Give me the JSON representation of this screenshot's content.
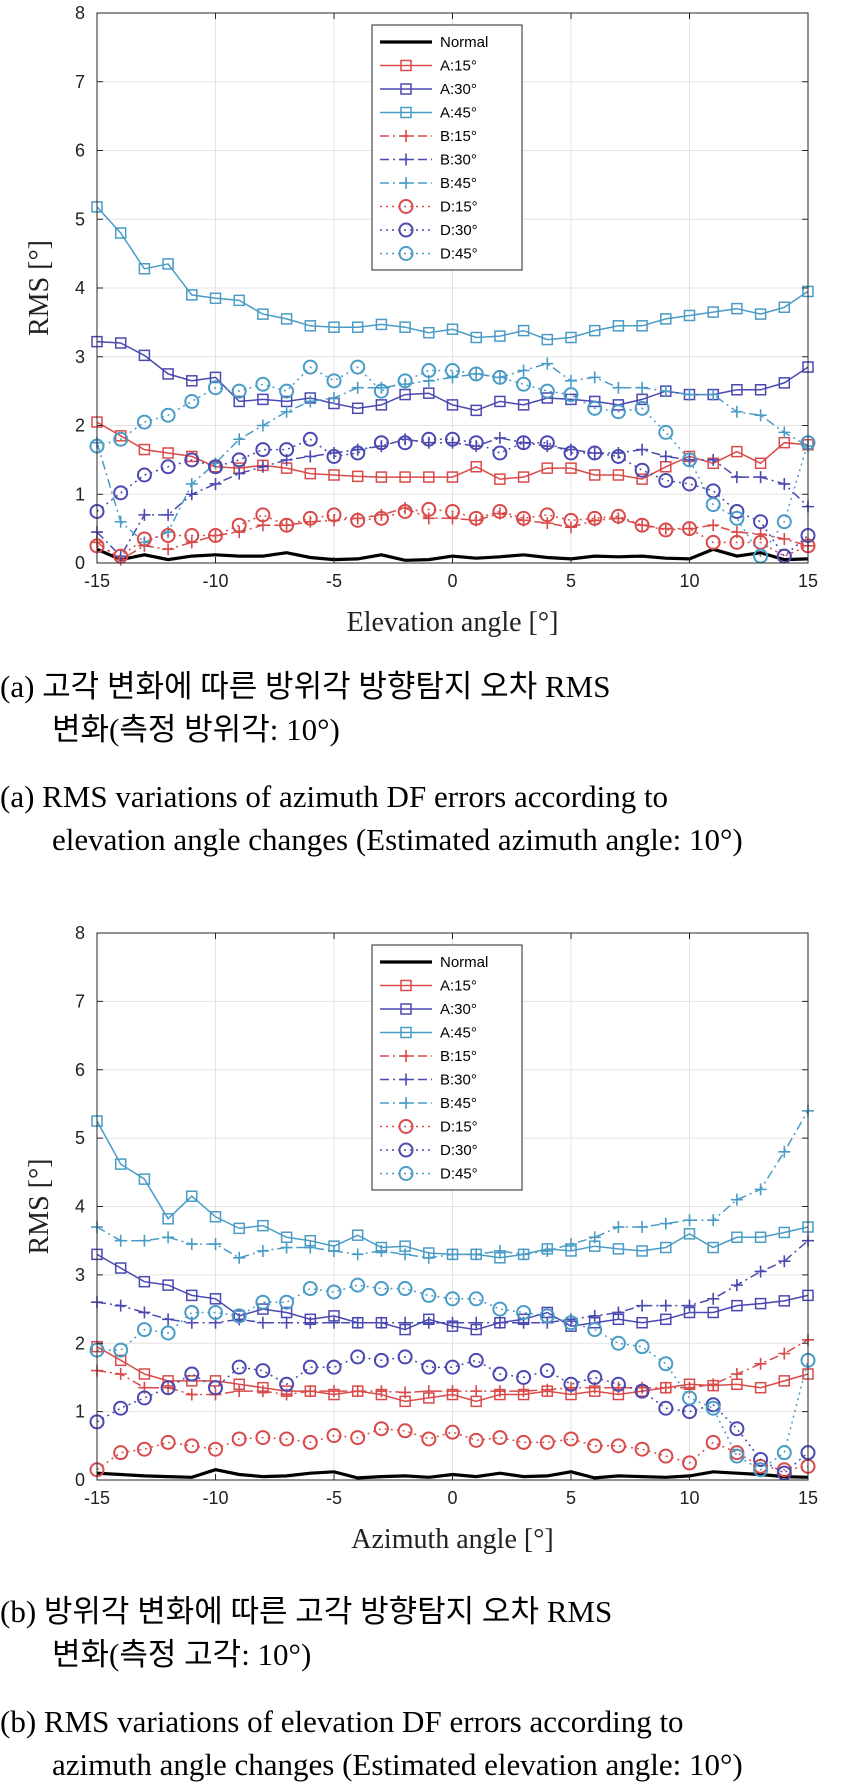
{
  "chart_data": [
    {
      "type": "line",
      "panel": "a",
      "xlabel": "Elevation angle [°]",
      "ylabel": "RMS [°]",
      "xlim": [
        -15,
        15
      ],
      "ylim": [
        0,
        8
      ],
      "xticks": [
        -15,
        -10,
        -5,
        0,
        5,
        10,
        15
      ],
      "yticks": [
        0,
        1,
        2,
        3,
        4,
        5,
        6,
        7,
        8
      ],
      "grid": true,
      "legend_position": "top-center",
      "x": [
        -15,
        -14,
        -13,
        -12,
        -11,
        -10,
        -9,
        -8,
        -7,
        -6,
        -5,
        -4,
        -3,
        -2,
        -1,
        0,
        1,
        2,
        3,
        4,
        5,
        6,
        7,
        8,
        9,
        10,
        11,
        12,
        13,
        14,
        15
      ],
      "series": [
        {
          "name": "Normal",
          "color": "#000000",
          "dash": "solid",
          "marker": "none",
          "values": [
            0.2,
            0.05,
            0.12,
            0.05,
            0.1,
            0.12,
            0.1,
            0.1,
            0.15,
            0.08,
            0.05,
            0.06,
            0.12,
            0.04,
            0.05,
            0.1,
            0.07,
            0.09,
            0.12,
            0.08,
            0.06,
            0.1,
            0.09,
            0.1,
            0.07,
            0.06,
            0.2,
            0.1,
            0.15,
            0.05,
            0.06
          ]
        },
        {
          "name": "A:15°",
          "color": "#d94a4a",
          "dash": "solid",
          "marker": "square",
          "values": [
            2.05,
            1.85,
            1.65,
            1.6,
            1.55,
            1.4,
            1.38,
            1.42,
            1.38,
            1.3,
            1.28,
            1.26,
            1.25,
            1.25,
            1.25,
            1.25,
            1.4,
            1.22,
            1.25,
            1.38,
            1.38,
            1.28,
            1.28,
            1.22,
            1.4,
            1.55,
            1.45,
            1.62,
            1.45,
            1.75,
            1.72
          ]
        },
        {
          "name": "A:30°",
          "color": "#4a49b0",
          "dash": "solid",
          "marker": "square",
          "values": [
            3.22,
            3.2,
            3.02,
            2.75,
            2.65,
            2.7,
            2.35,
            2.38,
            2.35,
            2.4,
            2.32,
            2.25,
            2.3,
            2.45,
            2.47,
            2.3,
            2.22,
            2.35,
            2.3,
            2.4,
            2.38,
            2.35,
            2.3,
            2.38,
            2.5,
            2.45,
            2.45,
            2.52,
            2.52,
            2.62,
            2.85
          ]
        },
        {
          "name": "A:45°",
          "color": "#4a9cc6",
          "dash": "solid",
          "marker": "square",
          "values": [
            5.18,
            4.8,
            4.28,
            4.35,
            3.9,
            3.85,
            3.82,
            3.62,
            3.55,
            3.45,
            3.43,
            3.43,
            3.47,
            3.43,
            3.35,
            3.4,
            3.28,
            3.3,
            3.38,
            3.25,
            3.28,
            3.38,
            3.45,
            3.45,
            3.55,
            3.6,
            3.65,
            3.7,
            3.62,
            3.72,
            3.95
          ]
        },
        {
          "name": "B:15°",
          "color": "#d94a4a",
          "dash": "dashdot",
          "marker": "plus",
          "values": [
            0.3,
            0.05,
            0.25,
            0.2,
            0.3,
            0.4,
            0.45,
            0.55,
            0.55,
            0.6,
            0.62,
            0.65,
            0.7,
            0.8,
            0.65,
            0.65,
            0.62,
            0.72,
            0.62,
            0.58,
            0.52,
            0.62,
            0.65,
            0.55,
            0.5,
            0.5,
            0.55,
            0.45,
            0.42,
            0.35,
            0.25
          ]
        },
        {
          "name": "B:30°",
          "color": "#4a49b0",
          "dash": "dashdot",
          "marker": "plus",
          "values": [
            0.45,
            0.1,
            0.7,
            0.7,
            1.0,
            1.15,
            1.3,
            1.4,
            1.5,
            1.55,
            1.6,
            1.65,
            1.7,
            1.8,
            1.75,
            1.75,
            1.7,
            1.82,
            1.75,
            1.7,
            1.65,
            1.6,
            1.6,
            1.65,
            1.55,
            1.5,
            1.5,
            1.25,
            1.25,
            1.15,
            0.82
          ]
        },
        {
          "name": "B:45°",
          "color": "#4a9cc6",
          "dash": "dashdot",
          "marker": "plus",
          "values": [
            1.75,
            0.6,
            0.3,
            0.45,
            1.15,
            1.45,
            1.8,
            2.0,
            2.2,
            2.35,
            2.4,
            2.55,
            2.55,
            2.6,
            2.65,
            2.7,
            2.75,
            2.7,
            2.8,
            2.9,
            2.65,
            2.7,
            2.55,
            2.55,
            2.5,
            2.45,
            2.45,
            2.2,
            2.15,
            1.9,
            1.7
          ]
        },
        {
          "name": "D:15°",
          "color": "#d94a4a",
          "dash": "dotted",
          "marker": "circle",
          "values": [
            0.25,
            0.1,
            0.35,
            0.4,
            0.4,
            0.4,
            0.55,
            0.7,
            0.55,
            0.65,
            0.7,
            0.62,
            0.65,
            0.75,
            0.78,
            0.75,
            0.65,
            0.75,
            0.65,
            0.7,
            0.62,
            0.65,
            0.68,
            0.55,
            0.48,
            0.5,
            0.3,
            0.3,
            0.3,
            0.1,
            0.25
          ]
        },
        {
          "name": "D:30°",
          "color": "#4a49b0",
          "dash": "dotted",
          "marker": "circle",
          "values": [
            0.75,
            1.02,
            1.28,
            1.4,
            1.5,
            1.4,
            1.5,
            1.65,
            1.65,
            1.8,
            1.55,
            1.6,
            1.75,
            1.75,
            1.8,
            1.8,
            1.75,
            1.6,
            1.75,
            1.75,
            1.6,
            1.6,
            1.55,
            1.35,
            1.2,
            1.15,
            1.05,
            0.75,
            0.6,
            0.1,
            0.4
          ]
        },
        {
          "name": "D:45°",
          "color": "#4a9cc6",
          "dash": "dotted",
          "marker": "circle",
          "values": [
            1.7,
            1.8,
            2.05,
            2.15,
            2.35,
            2.55,
            2.5,
            2.6,
            2.5,
            2.85,
            2.65,
            2.85,
            2.5,
            2.65,
            2.8,
            2.8,
            2.75,
            2.7,
            2.6,
            2.5,
            2.45,
            2.25,
            2.2,
            2.25,
            1.9,
            1.5,
            0.85,
            0.65,
            0.1,
            0.6,
            1.75
          ]
        }
      ]
    },
    {
      "type": "line",
      "panel": "b",
      "xlabel": "Azimuth angle [°]",
      "ylabel": "RMS [°]",
      "xlim": [
        -15,
        15
      ],
      "ylim": [
        0,
        8
      ],
      "xticks": [
        -15,
        -10,
        -5,
        0,
        5,
        10,
        15
      ],
      "yticks": [
        0,
        1,
        2,
        3,
        4,
        5,
        6,
        7,
        8
      ],
      "grid": true,
      "legend_position": "top-center",
      "x": [
        -15,
        -14,
        -13,
        -12,
        -11,
        -10,
        -9,
        -8,
        -7,
        -6,
        -5,
        -4,
        -3,
        -2,
        -1,
        0,
        1,
        2,
        3,
        4,
        5,
        6,
        7,
        8,
        9,
        10,
        11,
        12,
        13,
        14,
        15
      ],
      "series": [
        {
          "name": "Normal",
          "color": "#000000",
          "dash": "solid",
          "marker": "none",
          "values": [
            0.1,
            0.08,
            0.06,
            0.05,
            0.04,
            0.15,
            0.08,
            0.05,
            0.06,
            0.1,
            0.12,
            0.03,
            0.05,
            0.06,
            0.04,
            0.08,
            0.05,
            0.1,
            0.05,
            0.06,
            0.12,
            0.03,
            0.06,
            0.05,
            0.04,
            0.06,
            0.12,
            0.1,
            0.08,
            0.05,
            0.04
          ]
        },
        {
          "name": "A:15°",
          "color": "#d94a4a",
          "dash": "solid",
          "marker": "square",
          "values": [
            1.95,
            1.75,
            1.55,
            1.45,
            1.45,
            1.45,
            1.4,
            1.35,
            1.3,
            1.3,
            1.25,
            1.3,
            1.25,
            1.15,
            1.2,
            1.25,
            1.15,
            1.25,
            1.25,
            1.3,
            1.25,
            1.3,
            1.25,
            1.3,
            1.35,
            1.4,
            1.38,
            1.4,
            1.35,
            1.45,
            1.55
          ]
        },
        {
          "name": "A:30°",
          "color": "#4a49b0",
          "dash": "solid",
          "marker": "square",
          "values": [
            3.3,
            3.1,
            2.9,
            2.85,
            2.7,
            2.65,
            2.4,
            2.5,
            2.45,
            2.35,
            2.4,
            2.3,
            2.3,
            2.2,
            2.35,
            2.25,
            2.2,
            2.3,
            2.35,
            2.45,
            2.25,
            2.3,
            2.35,
            2.3,
            2.35,
            2.45,
            2.45,
            2.55,
            2.58,
            2.62,
            2.7
          ]
        },
        {
          "name": "A:45°",
          "color": "#4a9cc6",
          "dash": "solid",
          "marker": "square",
          "values": [
            5.25,
            4.62,
            4.4,
            3.82,
            4.15,
            3.85,
            3.68,
            3.72,
            3.55,
            3.5,
            3.42,
            3.58,
            3.4,
            3.42,
            3.32,
            3.3,
            3.3,
            3.25,
            3.3,
            3.38,
            3.35,
            3.42,
            3.38,
            3.35,
            3.4,
            3.6,
            3.4,
            3.55,
            3.55,
            3.62,
            3.7
          ]
        },
        {
          "name": "B:15°",
          "color": "#d94a4a",
          "dash": "dashdot",
          "marker": "plus",
          "values": [
            1.6,
            1.55,
            1.35,
            1.35,
            1.25,
            1.25,
            1.3,
            1.3,
            1.25,
            1.3,
            1.3,
            1.3,
            1.3,
            1.28,
            1.3,
            1.3,
            1.3,
            1.3,
            1.3,
            1.32,
            1.35,
            1.35,
            1.35,
            1.35,
            1.35,
            1.35,
            1.4,
            1.55,
            1.7,
            1.85,
            2.05
          ]
        },
        {
          "name": "B:30°",
          "color": "#4a49b0",
          "dash": "dashdot",
          "marker": "plus",
          "values": [
            2.6,
            2.55,
            2.45,
            2.35,
            2.3,
            2.3,
            2.35,
            2.3,
            2.3,
            2.3,
            2.3,
            2.3,
            2.3,
            2.3,
            2.3,
            2.3,
            2.3,
            2.3,
            2.3,
            2.3,
            2.35,
            2.4,
            2.45,
            2.55,
            2.55,
            2.55,
            2.65,
            2.85,
            3.05,
            3.2,
            3.5
          ]
        },
        {
          "name": "B:45°",
          "color": "#4a9cc6",
          "dash": "dashdot",
          "marker": "plus",
          "values": [
            3.7,
            3.5,
            3.5,
            3.55,
            3.45,
            3.45,
            3.25,
            3.35,
            3.4,
            3.4,
            3.35,
            3.3,
            3.35,
            3.3,
            3.25,
            3.3,
            3.3,
            3.35,
            3.3,
            3.35,
            3.45,
            3.55,
            3.7,
            3.7,
            3.75,
            3.8,
            3.8,
            4.1,
            4.25,
            4.8,
            5.4
          ]
        },
        {
          "name": "D:15°",
          "color": "#d94a4a",
          "dash": "dotted",
          "marker": "circle",
          "values": [
            0.15,
            0.4,
            0.45,
            0.55,
            0.5,
            0.45,
            0.6,
            0.62,
            0.6,
            0.55,
            0.65,
            0.62,
            0.75,
            0.72,
            0.6,
            0.7,
            0.58,
            0.62,
            0.55,
            0.55,
            0.6,
            0.5,
            0.5,
            0.45,
            0.35,
            0.25,
            0.55,
            0.4,
            0.2,
            0.15,
            0.2
          ]
        },
        {
          "name": "D:30°",
          "color": "#4a49b0",
          "dash": "dotted",
          "marker": "circle",
          "values": [
            0.85,
            1.05,
            1.2,
            1.35,
            1.55,
            1.35,
            1.65,
            1.6,
            1.4,
            1.65,
            1.65,
            1.8,
            1.75,
            1.8,
            1.65,
            1.65,
            1.75,
            1.55,
            1.5,
            1.6,
            1.4,
            1.5,
            1.4,
            1.3,
            1.05,
            1.0,
            1.1,
            0.75,
            0.3,
            0.1,
            0.4
          ]
        },
        {
          "name": "D:45°",
          "color": "#4a9cc6",
          "dash": "dotted",
          "marker": "circle",
          "values": [
            1.9,
            1.9,
            2.2,
            2.15,
            2.45,
            2.45,
            2.4,
            2.6,
            2.6,
            2.8,
            2.75,
            2.85,
            2.8,
            2.8,
            2.7,
            2.65,
            2.65,
            2.5,
            2.45,
            2.4,
            2.3,
            2.2,
            2.0,
            1.95,
            1.7,
            1.2,
            1.05,
            0.35,
            0.15,
            0.4,
            1.75
          ]
        }
      ]
    }
  ],
  "captions": {
    "a": {
      "ko_line1": "(a) 고각 변화에 따른 방위각 방향탐지 오차 RMS",
      "ko_line2": "변화(측정 방위각: 10°)",
      "en_line1": "(a) RMS variations of azimuth DF errors according to",
      "en_line2": "elevation angle changes (Estimated azimuth angle: 10°)"
    },
    "b": {
      "ko_line1": "(b) 방위각 변화에 따른 고각 방향탐지 오차 RMS",
      "ko_line2": "변화(측정 고각: 10°)",
      "en_line1": "(b) RMS variations of elevation DF errors according to",
      "en_line2": "azimuth angle changes (Estimated elevation angle: 10°)"
    }
  }
}
